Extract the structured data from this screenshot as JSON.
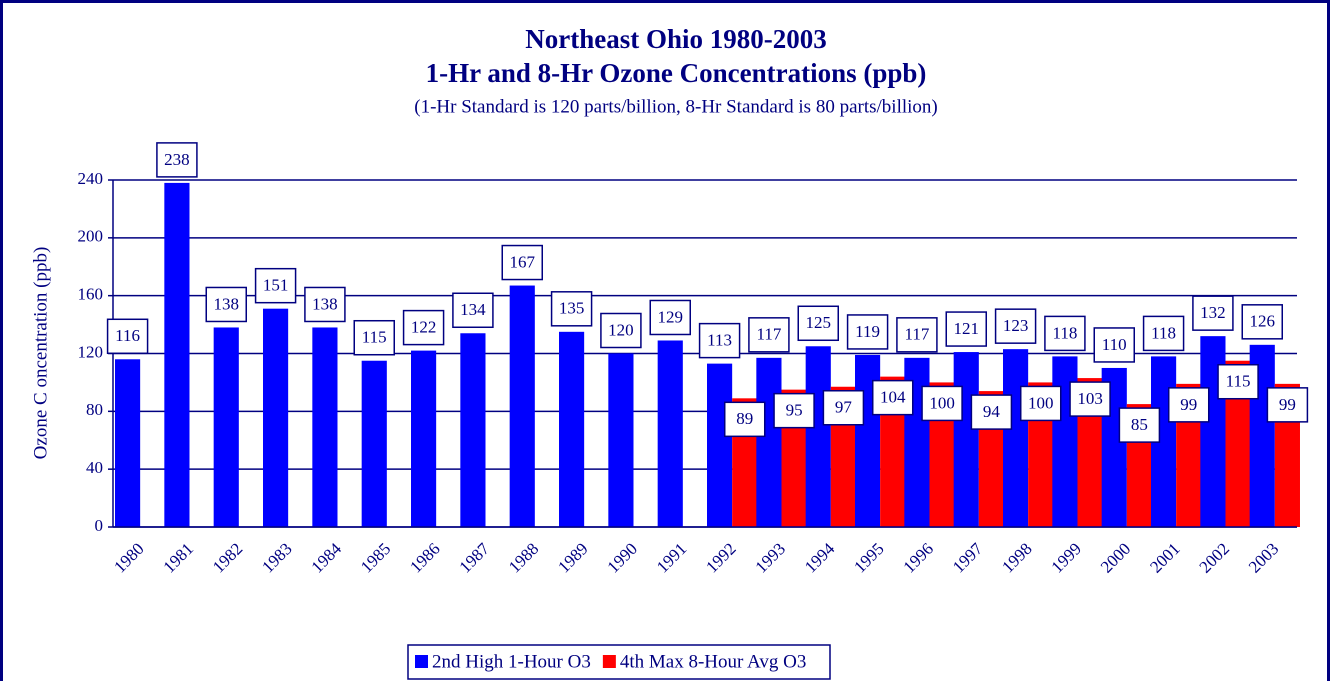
{
  "chart_data": {
    "type": "bar",
    "title": "Northeast Ohio 1980-2003",
    "subtitle": "1-Hr and 8-Hr Ozone Concentrations (ppb)",
    "note": "(1-Hr Standard is 120 parts/billion, 8-Hr Standard is 80 parts/billion)",
    "y_label": "Ozone C oncentration (ppb)",
    "categories": [
      "1980",
      "1981",
      "1982",
      "1983",
      "1984",
      "1985",
      "1986",
      "1987",
      "1988",
      "1989",
      "1990",
      "1991",
      "1992",
      "1993",
      "1994",
      "1995",
      "1996",
      "1997",
      "1998",
      "1999",
      "2000",
      "2001",
      "2002",
      "2003"
    ],
    "series": [
      {
        "name": "2nd High 1-Hour O3",
        "color": "#0000ff",
        "values": [
          116,
          238,
          138,
          151,
          138,
          115,
          122,
          134,
          167,
          135,
          120,
          129,
          113,
          117,
          125,
          119,
          117,
          121,
          123,
          118,
          110,
          118,
          132,
          126
        ]
      },
      {
        "name": "4th Max 8-Hour Avg O3",
        "color": "#ff0000",
        "values": [
          null,
          null,
          null,
          null,
          null,
          null,
          null,
          null,
          null,
          null,
          null,
          null,
          89,
          95,
          97,
          104,
          100,
          94,
          100,
          103,
          85,
          99,
          115,
          99
        ]
      }
    ],
    "ylim": [
      0,
      240
    ],
    "yticks": [
      0,
      40,
      80,
      120,
      160,
      200,
      240
    ],
    "grid": true,
    "legend": "bottom"
  }
}
